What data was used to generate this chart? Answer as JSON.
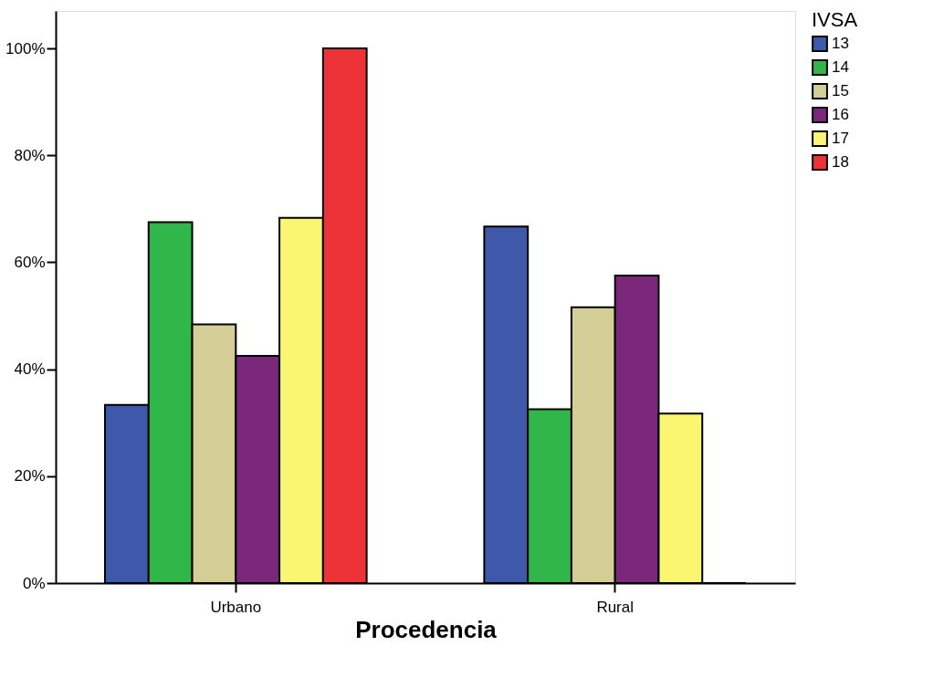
{
  "chart_data": {
    "type": "bar",
    "xlabel": "Procedencia",
    "legend_title": "IVSA",
    "categories": [
      "Urbano",
      "Rural"
    ],
    "series": [
      {
        "name": "13",
        "color": "#3f59aa",
        "values": [
          33.3,
          66.7
        ]
      },
      {
        "name": "14",
        "color": "#31b64a",
        "values": [
          67.5,
          32.5
        ]
      },
      {
        "name": "15",
        "color": "#d4ce96",
        "values": [
          48.4,
          51.6
        ]
      },
      {
        "name": "16",
        "color": "#7b287a",
        "values": [
          42.5,
          57.5
        ]
      },
      {
        "name": "17",
        "color": "#faf672",
        "values": [
          68.3,
          31.7
        ]
      },
      {
        "name": "18",
        "color": "#ee3338",
        "values": [
          100,
          0
        ]
      }
    ],
    "ylim": [
      0,
      107
    ],
    "yticks": [
      {
        "value": 0,
        "label": "0%"
      },
      {
        "value": 20,
        "label": "20%"
      },
      {
        "value": 40,
        "label": "40%"
      },
      {
        "value": 60,
        "label": "60%"
      },
      {
        "value": 80,
        "label": "80%"
      },
      {
        "value": 100,
        "label": "100%"
      }
    ],
    "grid": false,
    "legend": "right"
  }
}
